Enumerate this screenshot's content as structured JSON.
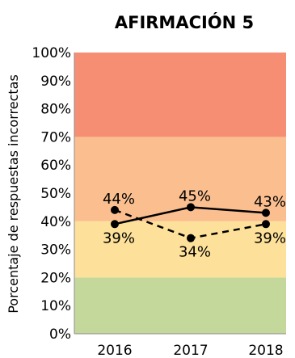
{
  "chart_data": {
    "type": "line",
    "title": "AFIRMACIÓN 5",
    "ylabel": "Porcentaje de respuestas incorrectas",
    "xlabel": "",
    "categories": [
      "2016",
      "2017",
      "2018"
    ],
    "ylim": [
      0,
      100
    ],
    "yticks": [
      "0%",
      "10%",
      "20%",
      "30%",
      "40%",
      "50%",
      "60%",
      "70%",
      "80%",
      "90%",
      "100%"
    ],
    "bands": [
      {
        "from": 0,
        "to": 20,
        "color": "#c4d89b"
      },
      {
        "from": 20,
        "to": 40,
        "color": "#fde19a"
      },
      {
        "from": 40,
        "to": 70,
        "color": "#fbbf8f"
      },
      {
        "from": 70,
        "to": 100,
        "color": "#f58e73"
      }
    ],
    "series": [
      {
        "style": "solid",
        "values": [
          39,
          45,
          43
        ],
        "labels": [
          "39%",
          "45%",
          "43%"
        ],
        "label_pos": [
          "below",
          "above",
          "above"
        ]
      },
      {
        "style": "dashed",
        "values": [
          44,
          34,
          39
        ],
        "labels": [
          "44%",
          "34%",
          "39%"
        ],
        "label_pos": [
          "above",
          "below",
          "below"
        ]
      }
    ],
    "line_color": "#000000",
    "grid": false
  }
}
